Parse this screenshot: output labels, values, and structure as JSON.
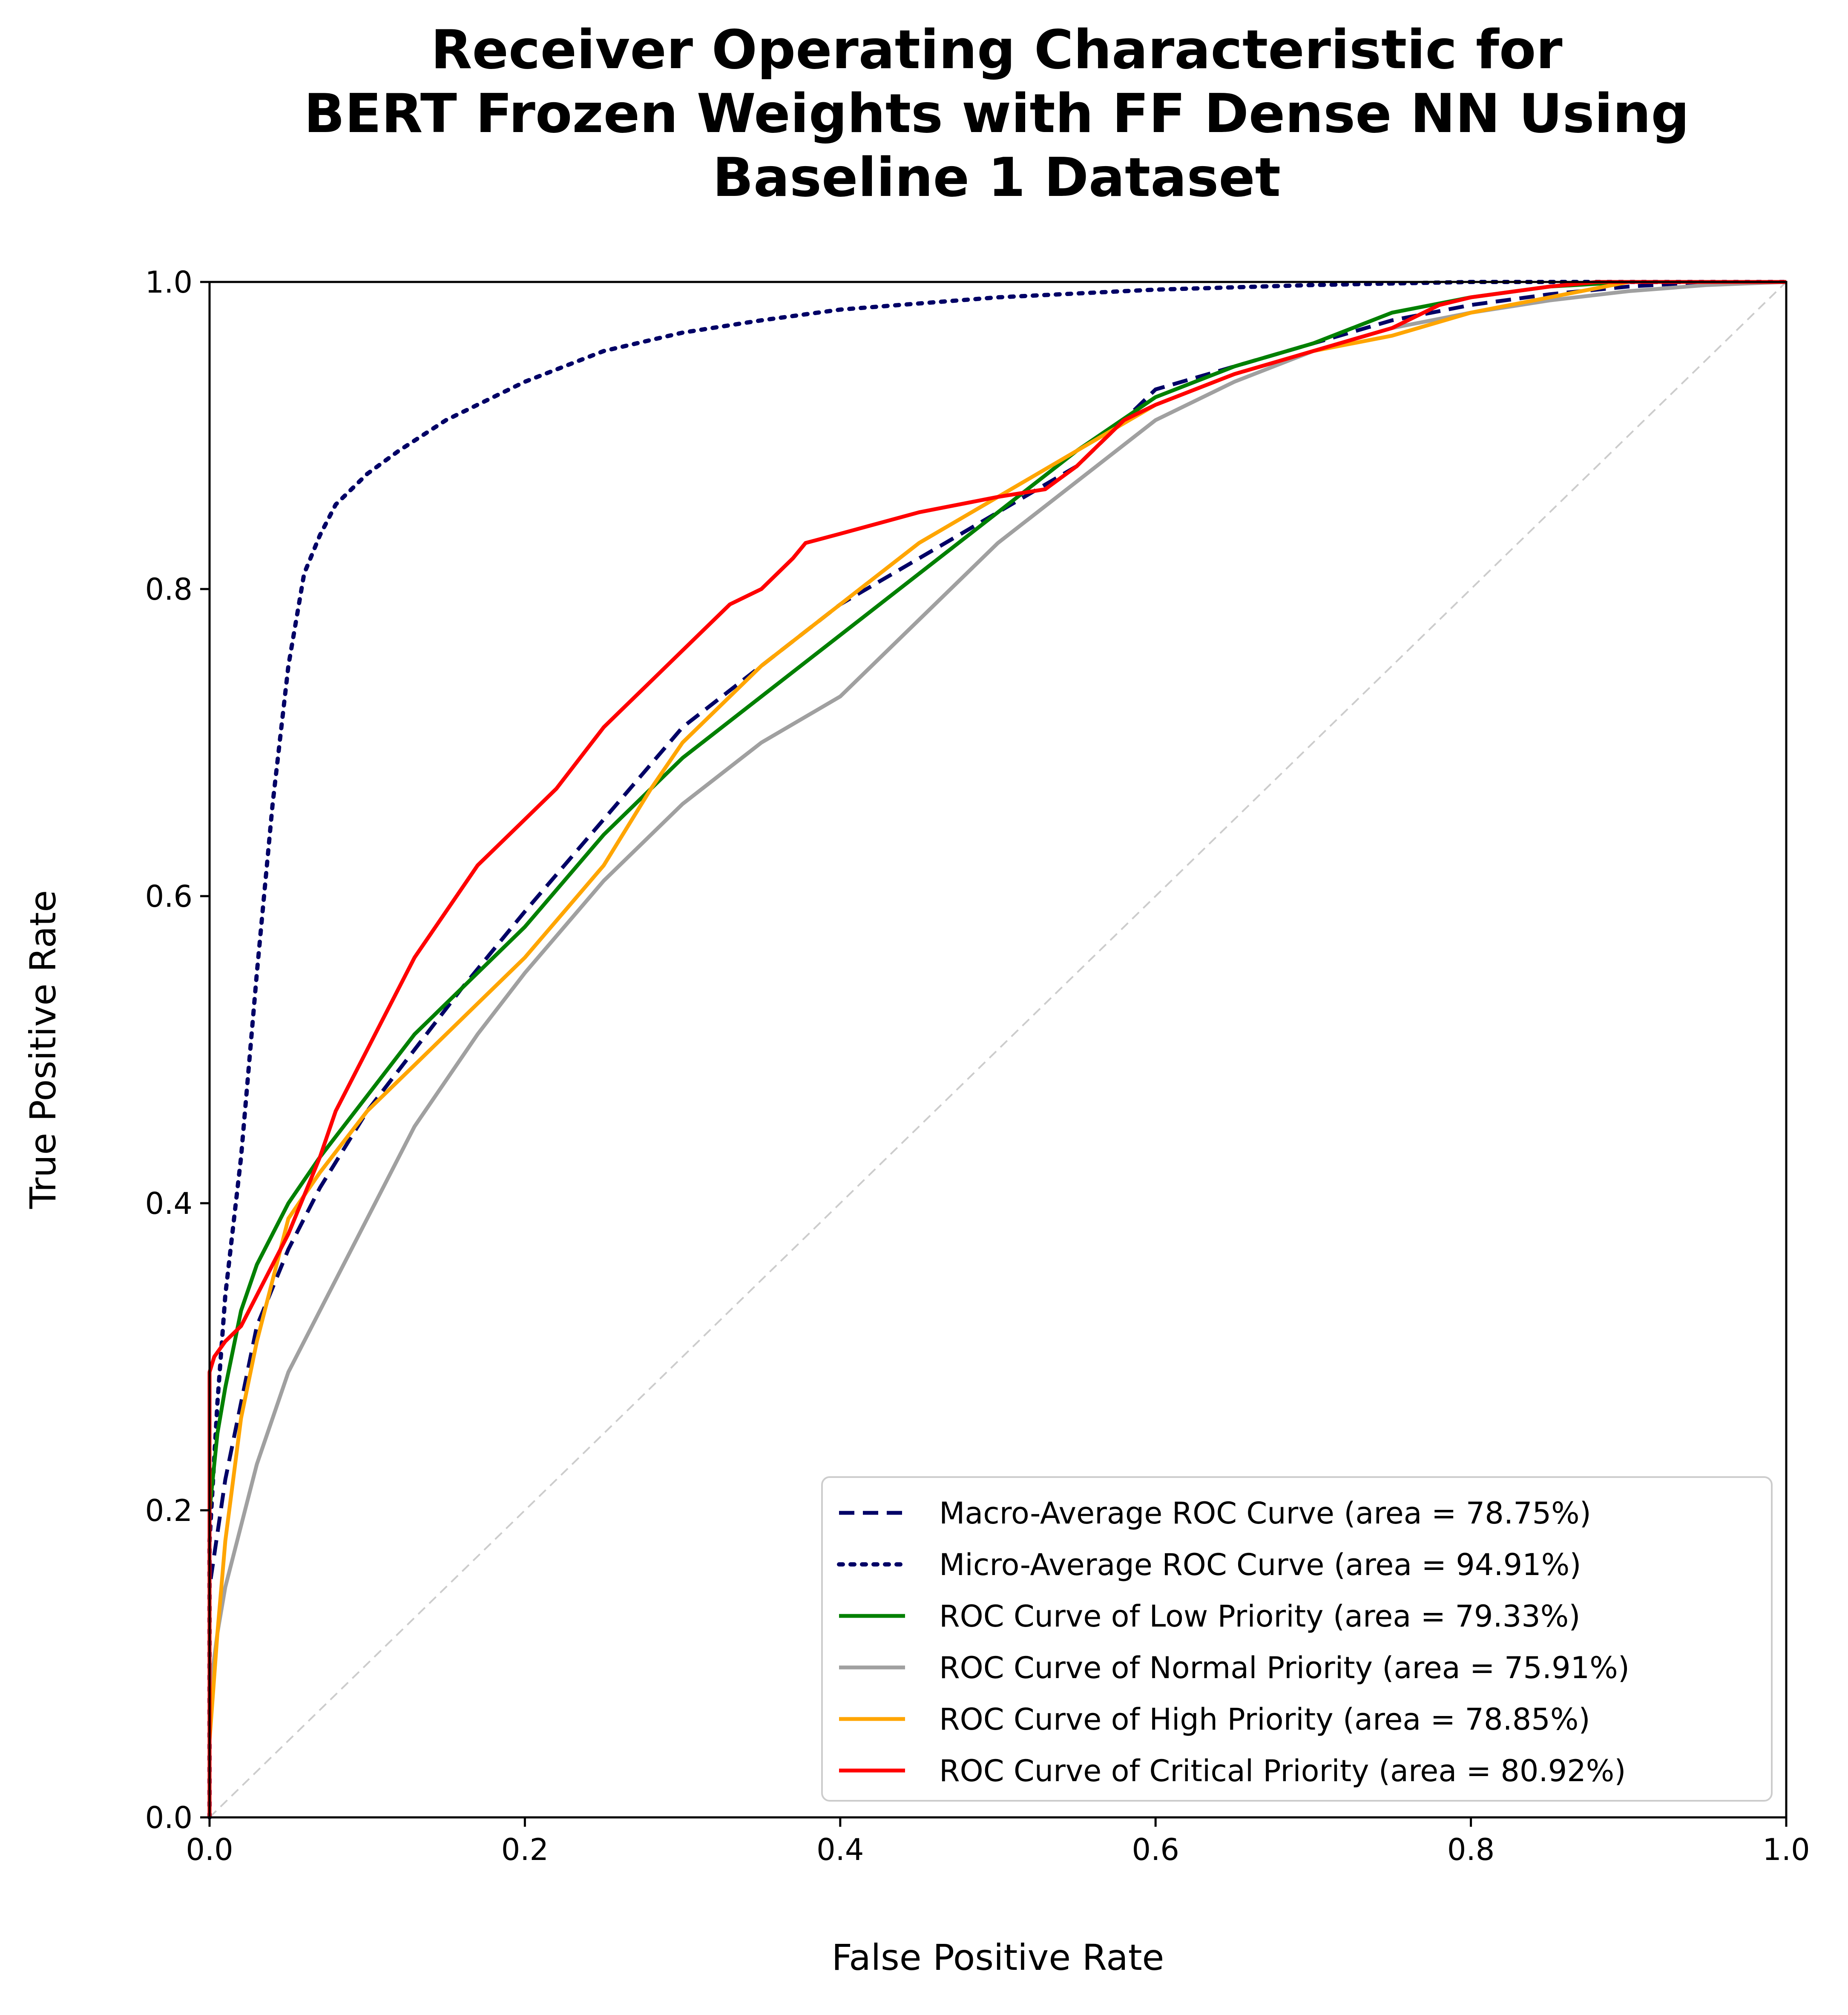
{
  "chart_data": {
    "type": "line",
    "title": [
      "Receiver Operating Characteristic for",
      "BERT Frozen Weights with FF Dense NN Using",
      "Baseline 1 Dataset"
    ],
    "xlabel": "False Positive Rate",
    "ylabel": "True Positive Rate",
    "xlim": [
      0.0,
      1.0
    ],
    "ylim": [
      0.0,
      1.0
    ],
    "xticks": [
      "0.0",
      "0.2",
      "0.4",
      "0.6",
      "0.8",
      "1.0"
    ],
    "yticks": [
      "0.0",
      "0.2",
      "0.4",
      "0.6",
      "0.8",
      "1.0"
    ],
    "grid": false,
    "legend_position": "lower-right",
    "reference_line": {
      "x": [
        0,
        1
      ],
      "y": [
        0,
        1
      ],
      "color": "#cccccc",
      "style": "dashed"
    },
    "series": [
      {
        "name": "Macro-Average ROC Curve (area = 78.75%)",
        "color": "#000066",
        "style": "dashed",
        "x": [
          0.0,
          0.0,
          0.01,
          0.02,
          0.03,
          0.05,
          0.07,
          0.1,
          0.13,
          0.16,
          0.2,
          0.25,
          0.3,
          0.35,
          0.4,
          0.45,
          0.5,
          0.55,
          0.6,
          0.65,
          0.7,
          0.75,
          0.8,
          0.85,
          0.9,
          0.95,
          1.0
        ],
        "y": [
          0.0,
          0.15,
          0.22,
          0.27,
          0.32,
          0.37,
          0.41,
          0.46,
          0.5,
          0.54,
          0.59,
          0.65,
          0.71,
          0.75,
          0.79,
          0.82,
          0.85,
          0.88,
          0.93,
          0.945,
          0.96,
          0.975,
          0.985,
          0.992,
          0.997,
          1.0,
          1.0
        ]
      },
      {
        "name": "Micro-Average ROC Curve (area = 94.91%)",
        "color": "#000066",
        "style": "dotted",
        "x": [
          0.0,
          0.0,
          0.005,
          0.01,
          0.02,
          0.03,
          0.04,
          0.05,
          0.06,
          0.07,
          0.08,
          0.09,
          0.1,
          0.12,
          0.15,
          0.2,
          0.25,
          0.3,
          0.35,
          0.4,
          0.5,
          0.6,
          0.7,
          0.8,
          1.0
        ],
        "y": [
          0.0,
          0.18,
          0.27,
          0.34,
          0.43,
          0.55,
          0.66,
          0.75,
          0.81,
          0.835,
          0.855,
          0.865,
          0.875,
          0.89,
          0.91,
          0.935,
          0.955,
          0.967,
          0.975,
          0.982,
          0.99,
          0.995,
          0.998,
          1.0,
          1.0
        ]
      },
      {
        "name": "ROC Curve of Low Priority (area = 79.33%)",
        "color": "#008000",
        "style": "solid",
        "x": [
          0.0,
          0.0,
          0.005,
          0.01,
          0.02,
          0.03,
          0.05,
          0.07,
          0.1,
          0.13,
          0.17,
          0.2,
          0.25,
          0.3,
          0.35,
          0.4,
          0.45,
          0.5,
          0.55,
          0.6,
          0.65,
          0.7,
          0.75,
          0.8,
          0.85,
          0.9,
          1.0
        ],
        "y": [
          0.0,
          0.2,
          0.25,
          0.28,
          0.33,
          0.36,
          0.4,
          0.43,
          0.47,
          0.51,
          0.55,
          0.58,
          0.64,
          0.69,
          0.73,
          0.77,
          0.81,
          0.85,
          0.89,
          0.925,
          0.945,
          0.96,
          0.98,
          0.99,
          0.997,
          1.0,
          1.0
        ]
      },
      {
        "name": "ROC Curve of Normal Priority (area = 75.91%)",
        "color": "#a0a0a0",
        "style": "solid",
        "x": [
          0.0,
          0.0,
          0.005,
          0.01,
          0.02,
          0.03,
          0.05,
          0.07,
          0.1,
          0.13,
          0.17,
          0.2,
          0.25,
          0.3,
          0.35,
          0.4,
          0.45,
          0.5,
          0.55,
          0.6,
          0.65,
          0.7,
          0.75,
          0.8,
          0.85,
          0.9,
          0.95,
          1.0
        ],
        "y": [
          0.0,
          0.08,
          0.12,
          0.15,
          0.19,
          0.23,
          0.29,
          0.33,
          0.39,
          0.45,
          0.51,
          0.55,
          0.61,
          0.66,
          0.7,
          0.73,
          0.78,
          0.83,
          0.87,
          0.91,
          0.935,
          0.955,
          0.97,
          0.98,
          0.988,
          0.994,
          0.998,
          1.0
        ]
      },
      {
        "name": "ROC Curve of High Priority (area = 78.85%)",
        "color": "#ffa500",
        "style": "solid",
        "x": [
          0.0,
          0.0,
          0.005,
          0.01,
          0.02,
          0.03,
          0.04,
          0.05,
          0.07,
          0.1,
          0.13,
          0.17,
          0.2,
          0.25,
          0.28,
          0.3,
          0.35,
          0.4,
          0.45,
          0.5,
          0.55,
          0.6,
          0.65,
          0.7,
          0.75,
          0.8,
          0.85,
          0.9,
          1.0
        ],
        "y": [
          0.0,
          0.05,
          0.12,
          0.18,
          0.26,
          0.31,
          0.35,
          0.39,
          0.42,
          0.46,
          0.49,
          0.53,
          0.56,
          0.62,
          0.67,
          0.7,
          0.75,
          0.79,
          0.83,
          0.86,
          0.89,
          0.92,
          0.94,
          0.955,
          0.965,
          0.98,
          0.99,
          1.0,
          1.0
        ]
      },
      {
        "name": "ROC Curve of Critical Priority (area = 80.92%)",
        "color": "#ff0000",
        "style": "solid",
        "x": [
          0.0,
          0.0,
          0.003,
          0.01,
          0.02,
          0.03,
          0.05,
          0.07,
          0.08,
          0.1,
          0.12,
          0.13,
          0.15,
          0.17,
          0.2,
          0.22,
          0.25,
          0.26,
          0.28,
          0.3,
          0.32,
          0.33,
          0.35,
          0.37,
          0.378,
          0.4,
          0.45,
          0.5,
          0.53,
          0.55,
          0.56,
          0.58,
          0.6,
          0.65,
          0.7,
          0.75,
          0.78,
          0.8,
          0.85,
          0.88,
          1.0
        ],
        "y": [
          0.0,
          0.29,
          0.3,
          0.31,
          0.32,
          0.34,
          0.38,
          0.43,
          0.46,
          0.5,
          0.54,
          0.56,
          0.59,
          0.62,
          0.65,
          0.67,
          0.71,
          0.72,
          0.74,
          0.76,
          0.78,
          0.79,
          0.8,
          0.82,
          0.83,
          0.836,
          0.85,
          0.86,
          0.865,
          0.88,
          0.89,
          0.91,
          0.92,
          0.94,
          0.955,
          0.97,
          0.985,
          0.99,
          0.997,
          1.0,
          1.0
        ]
      }
    ]
  }
}
